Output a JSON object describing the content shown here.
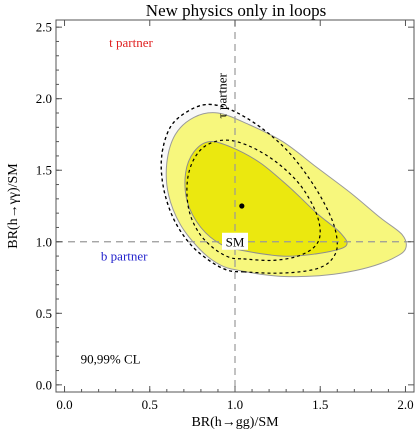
{
  "chart_data": {
    "type": "contour",
    "title": "New physics only in loops",
    "xlabel": "BR(h→gg)/SM",
    "ylabel": "BR(h→γγ)/SM",
    "xlim": [
      -0.05,
      2.05
    ],
    "ylim": [
      -0.05,
      2.55
    ],
    "xticks": [
      0.0,
      0.5,
      1.0,
      1.5,
      2.0
    ],
    "yticks": [
      0.0,
      0.5,
      1.0,
      1.5,
      2.0,
      2.5
    ],
    "xtick_labels": [
      "0.0",
      "0.5",
      "1.0",
      "1.5",
      "2.0"
    ],
    "ytick_labels": [
      "0.0",
      "0.5",
      "1.0",
      "1.5",
      "2.0",
      "2.5"
    ],
    "best_fit": [
      1.04,
      1.25
    ],
    "sm_point": [
      1.0,
      1.0
    ],
    "sm_label": "SM",
    "cl_label": "90,99% CL",
    "reference_lines": [
      {
        "orientation": "vertical",
        "value": 1.0
      },
      {
        "orientation": "horizontal",
        "value": 1.0
      }
    ],
    "annotations": [
      {
        "text": "t partner",
        "color": "#e02020",
        "x": 0.39,
        "y": 2.36
      },
      {
        "text": "τ partner",
        "color": "#000000",
        "x": 0.95,
        "y": 2.02,
        "rotation": -90
      },
      {
        "text": "b partner",
        "color": "#2222cc",
        "x": 0.35,
        "y": 0.87
      },
      {
        "text": "90,99% CL",
        "color": "#000000",
        "x": 0.27,
        "y": 0.15
      }
    ],
    "contours": [
      {
        "name": "99%",
        "style": "light-yellow-fill",
        "points": [
          [
            1.02,
            0.8
          ],
          [
            1.25,
            0.76
          ],
          [
            1.45,
            0.76
          ],
          [
            1.62,
            0.78
          ],
          [
            1.78,
            0.82
          ],
          [
            1.92,
            0.88
          ],
          [
            2.0,
            0.95
          ],
          [
            1.98,
            1.05
          ],
          [
            1.85,
            1.17
          ],
          [
            1.68,
            1.34
          ],
          [
            1.48,
            1.52
          ],
          [
            1.28,
            1.7
          ],
          [
            1.08,
            1.82
          ],
          [
            0.9,
            1.9
          ],
          [
            0.76,
            1.87
          ],
          [
            0.65,
            1.75
          ],
          [
            0.6,
            1.55
          ],
          [
            0.61,
            1.33
          ],
          [
            0.68,
            1.12
          ],
          [
            0.8,
            0.94
          ],
          [
            0.91,
            0.84
          ]
        ]
      },
      {
        "name": "90%",
        "style": "dark-yellow-fill",
        "points": [
          [
            1.04,
            0.94
          ],
          [
            1.28,
            0.9
          ],
          [
            1.5,
            0.92
          ],
          [
            1.65,
            0.97
          ],
          [
            1.62,
            1.06
          ],
          [
            1.48,
            1.2
          ],
          [
            1.32,
            1.38
          ],
          [
            1.15,
            1.55
          ],
          [
            0.98,
            1.66
          ],
          [
            0.85,
            1.7
          ],
          [
            0.76,
            1.63
          ],
          [
            0.71,
            1.48
          ],
          [
            0.72,
            1.28
          ],
          [
            0.8,
            1.1
          ],
          [
            0.92,
            0.98
          ]
        ]
      },
      {
        "name": "τ 99%",
        "style": "dotted",
        "points": [
          [
            1.05,
            0.79
          ],
          [
            1.22,
            0.78
          ],
          [
            1.38,
            0.79
          ],
          [
            1.5,
            0.82
          ],
          [
            1.57,
            0.88
          ],
          [
            1.6,
            0.98
          ],
          [
            1.57,
            1.15
          ],
          [
            1.47,
            1.38
          ],
          [
            1.32,
            1.62
          ],
          [
            1.15,
            1.8
          ],
          [
            0.98,
            1.92
          ],
          [
            0.84,
            1.96
          ],
          [
            0.72,
            1.91
          ],
          [
            0.62,
            1.8
          ],
          [
            0.57,
            1.6
          ],
          [
            0.58,
            1.38
          ],
          [
            0.64,
            1.16
          ],
          [
            0.74,
            0.98
          ],
          [
            0.86,
            0.86
          ],
          [
            0.96,
            0.8
          ]
        ]
      },
      {
        "name": "τ 90%",
        "style": "dotted",
        "points": [
          [
            1.05,
            0.88
          ],
          [
            1.22,
            0.87
          ],
          [
            1.37,
            0.9
          ],
          [
            1.47,
            0.97
          ],
          [
            1.5,
            1.07
          ],
          [
            1.47,
            1.22
          ],
          [
            1.38,
            1.4
          ],
          [
            1.25,
            1.55
          ],
          [
            1.1,
            1.66
          ],
          [
            0.96,
            1.71
          ],
          [
            0.84,
            1.68
          ],
          [
            0.76,
            1.58
          ],
          [
            0.72,
            1.42
          ],
          [
            0.73,
            1.22
          ],
          [
            0.79,
            1.06
          ],
          [
            0.88,
            0.95
          ],
          [
            0.97,
            0.89
          ]
        ]
      }
    ]
  }
}
